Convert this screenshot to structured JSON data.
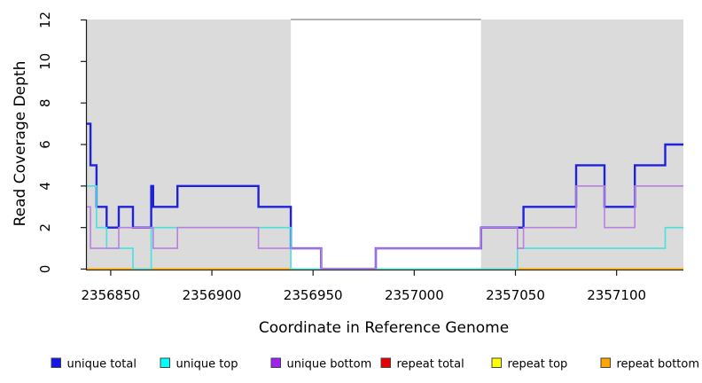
{
  "figure": {
    "x_axis_label": "Coordinate in Reference Genome",
    "y_axis_label": "Read Coverage Depth"
  },
  "chart_data": {
    "type": "line",
    "line_style": "step-after",
    "title": "",
    "xlabel": "Coordinate in Reference Genome",
    "ylabel": "Read Coverage Depth",
    "xlim": [
      2356838,
      2357133
    ],
    "ylim": [
      0,
      12
    ],
    "x_ticks": [
      2356850,
      2356900,
      2356950,
      2357000,
      2357050,
      2357100
    ],
    "y_ticks": [
      0,
      2,
      4,
      6,
      8,
      10,
      12
    ],
    "grid": false,
    "legend_position": "bottom",
    "highlight_color": "#DBDBDB",
    "background_highlight_regions_x": [
      [
        2356838,
        2356939
      ],
      [
        2357033,
        2357133
      ]
    ],
    "zero_line_overlap_segment": {
      "x_range": [
        2356939,
        2357051
      ],
      "color": "#97CE97"
    },
    "series": [
      {
        "name": "unique total",
        "legend_color": "#1414EB",
        "line_color": "#2121DC",
        "line_width": 2.4,
        "points": [
          [
            2356838,
            7
          ],
          [
            2356840,
            5
          ],
          [
            2356843,
            3
          ],
          [
            2356848,
            2
          ],
          [
            2356854,
            3
          ],
          [
            2356861,
            2
          ],
          [
            2356870,
            4
          ],
          [
            2356871,
            3
          ],
          [
            2356883,
            4
          ],
          [
            2356923,
            3
          ],
          [
            2356939,
            1
          ],
          [
            2356954,
            0
          ],
          [
            2356981,
            1
          ],
          [
            2357033,
            2
          ],
          [
            2357054,
            3
          ],
          [
            2357080,
            5
          ],
          [
            2357094,
            3
          ],
          [
            2357109,
            5
          ],
          [
            2357124,
            6
          ],
          [
            2357133,
            6
          ]
        ]
      },
      {
        "name": "unique top",
        "legend_color": "#00FFFF",
        "line_color": "#45E2E2",
        "line_width": 1.6,
        "points": [
          [
            2356838,
            4
          ],
          [
            2356843,
            2
          ],
          [
            2356848,
            1
          ],
          [
            2356861,
            0
          ],
          [
            2356870,
            2
          ],
          [
            2356939,
            0
          ],
          [
            2357051,
            1
          ],
          [
            2357124,
            2
          ],
          [
            2357133,
            2
          ]
        ]
      },
      {
        "name": "unique bottom",
        "legend_color": "#A020F0",
        "line_color": "#BA80E0",
        "line_width": 1.6,
        "points": [
          [
            2356838,
            3
          ],
          [
            2356840,
            1
          ],
          [
            2356854,
            2
          ],
          [
            2356871,
            1
          ],
          [
            2356883,
            2
          ],
          [
            2356923,
            1
          ],
          [
            2356954,
            0
          ],
          [
            2356981,
            1
          ],
          [
            2357033,
            2
          ],
          [
            2357051,
            1
          ],
          [
            2357054,
            2
          ],
          [
            2357080,
            4
          ],
          [
            2357094,
            2
          ],
          [
            2357109,
            4
          ],
          [
            2357133,
            4
          ]
        ]
      },
      {
        "name": "repeat total",
        "legend_color": "#E60000",
        "line_color": "#E60000",
        "line_width": 1.5,
        "points": [
          [
            2356838,
            0
          ],
          [
            2357133,
            0
          ]
        ]
      },
      {
        "name": "repeat top",
        "legend_color": "#FFFF00",
        "line_color": "#FFFF00",
        "line_width": 1.5,
        "points": [
          [
            2356838,
            0
          ],
          [
            2357133,
            0
          ]
        ]
      },
      {
        "name": "repeat bottom",
        "legend_color": "#FFA500",
        "line_color": "#FFA500",
        "line_width": 2,
        "points": [
          [
            2356838,
            0
          ],
          [
            2357133,
            0
          ]
        ]
      }
    ]
  }
}
